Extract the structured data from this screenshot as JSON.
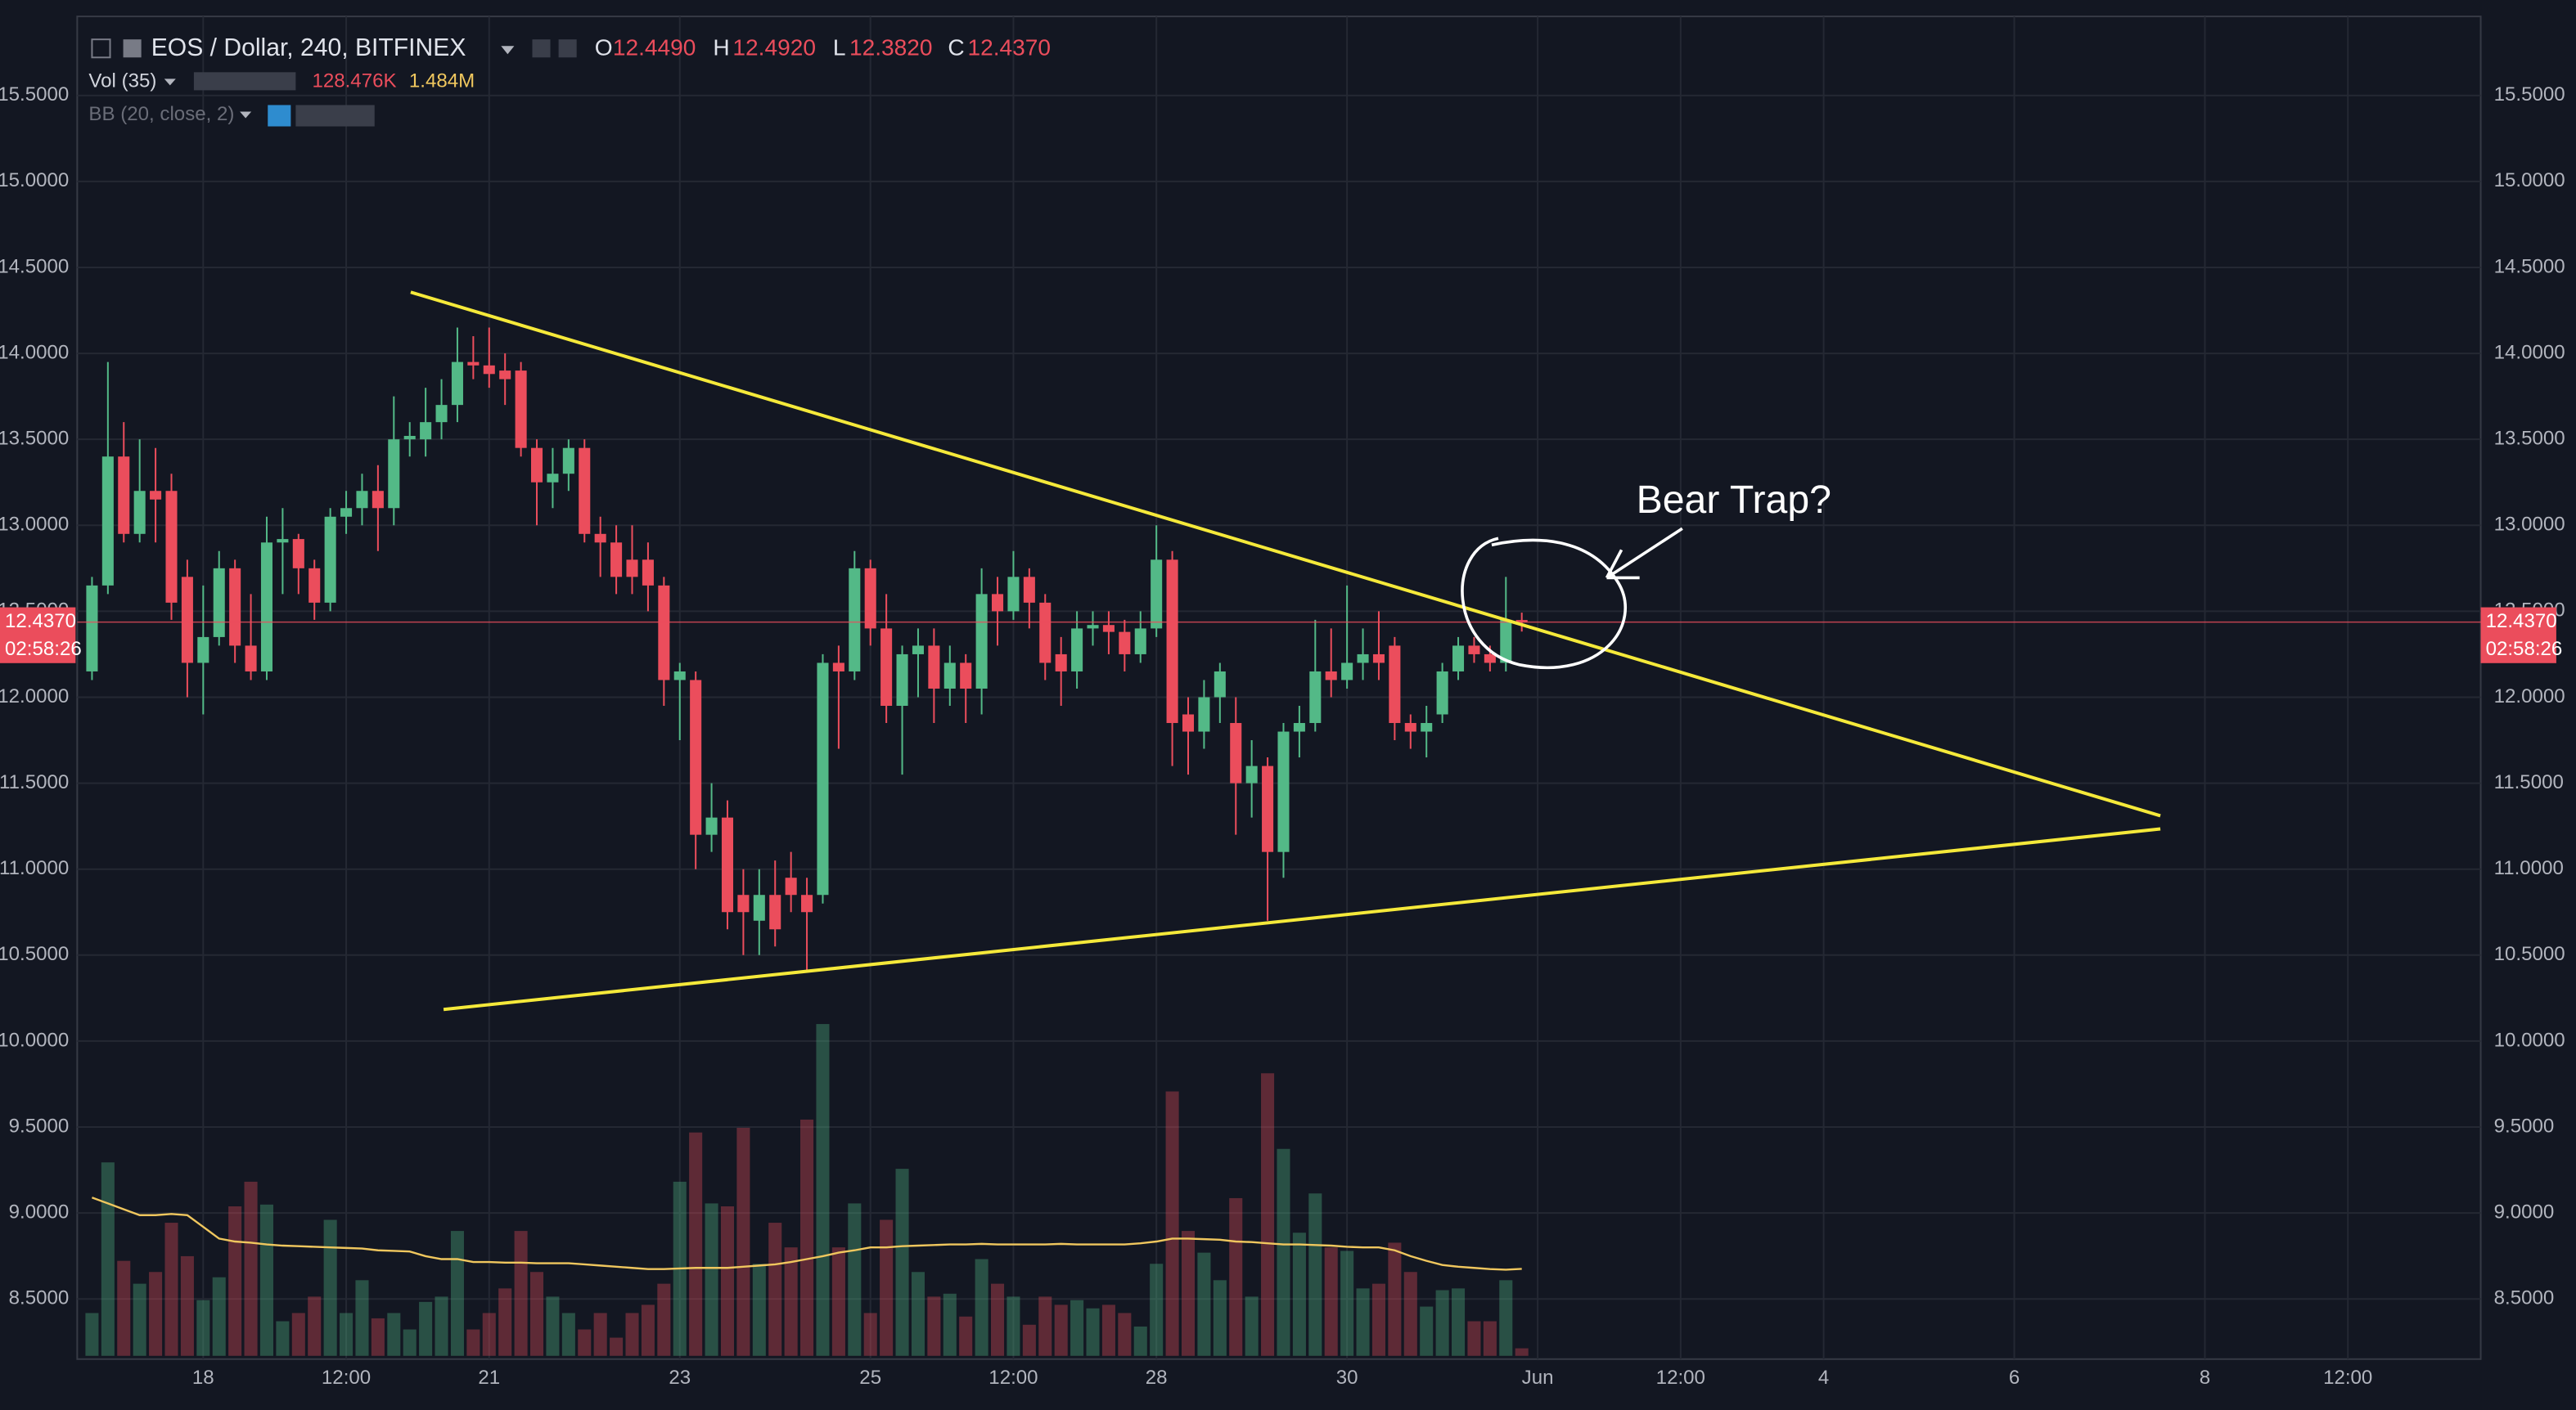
{
  "chart_data": {
    "type": "candlestick",
    "title": "EOS / Dollar, 240, BITFINEX",
    "ohlc_labels": [
      "O",
      "H",
      "L",
      "C"
    ],
    "ohlc_value_labels": [
      "12.4490",
      "12.4920",
      "12.3820",
      "12.4370"
    ],
    "volume_title": "Vol (35)",
    "volume_value_labels": [
      "128.476K",
      "1.484M"
    ],
    "bb_title": "BB (20, close, 2)",
    "last_price_label": "12.4370",
    "countdown": "02:58:26",
    "annotation": "Bear Trap?",
    "up_color": "#53b987",
    "down_color": "#eb4d5c",
    "ma_color": "#f0c75e",
    "ylim": [
      8.15,
      15.96
    ],
    "yticks": [
      {
        "value": 15.5,
        "label": "15.5000"
      },
      {
        "value": 15,
        "label": "15.0000"
      },
      {
        "value": 14.5,
        "label": "14.5000"
      },
      {
        "value": 14,
        "label": "14.0000"
      },
      {
        "value": 13.5,
        "label": "13.5000"
      },
      {
        "value": 13,
        "label": "13.0000"
      },
      {
        "value": 12.5,
        "label": "12.5000"
      },
      {
        "value": 12,
        "label": "12.0000"
      },
      {
        "value": 11.5,
        "label": "11.5000"
      },
      {
        "value": 11,
        "label": "11.0000"
      },
      {
        "value": 10.5,
        "label": "10.5000"
      },
      {
        "value": 10,
        "label": "10.0000"
      },
      {
        "value": 9.5,
        "label": "9.5000"
      },
      {
        "value": 9,
        "label": "9.0000"
      },
      {
        "value": 8.5,
        "label": "8.5000"
      }
    ],
    "xticks": [
      {
        "value": 7,
        "label": "18"
      },
      {
        "value": 16,
        "label": "12:00"
      },
      {
        "value": 25,
        "label": "21"
      },
      {
        "value": 37,
        "label": "23"
      },
      {
        "value": 49,
        "label": "25"
      },
      {
        "value": 58,
        "label": "12:00"
      },
      {
        "value": 67,
        "label": "28"
      },
      {
        "value": 79,
        "label": "30"
      },
      {
        "value": 91,
        "label": "Jun"
      },
      {
        "value": 100,
        "label": "12:00"
      },
      {
        "value": 109,
        "label": "4"
      },
      {
        "value": 121,
        "label": "6"
      },
      {
        "value": 133,
        "label": "8"
      },
      {
        "value": 142,
        "label": "12:00"
      }
    ],
    "grid": true,
    "ohlc": [
      [
        12.15,
        12.7,
        12.1,
        12.65
      ],
      [
        12.65,
        13.95,
        12.6,
        13.4
      ],
      [
        13.4,
        13.6,
        12.9,
        12.95
      ],
      [
        12.95,
        13.5,
        12.9,
        13.2
      ],
      [
        13.2,
        13.45,
        12.9,
        13.15
      ],
      [
        13.2,
        13.3,
        12.45,
        12.55
      ],
      [
        12.7,
        12.8,
        12.0,
        12.2
      ],
      [
        12.2,
        12.65,
        11.9,
        12.35
      ],
      [
        12.35,
        12.85,
        12.3,
        12.75
      ],
      [
        12.75,
        12.8,
        12.2,
        12.3
      ],
      [
        12.3,
        12.6,
        12.1,
        12.15
      ],
      [
        12.15,
        13.05,
        12.1,
        12.9
      ],
      [
        12.9,
        13.1,
        12.6,
        12.92
      ],
      [
        12.92,
        12.95,
        12.6,
        12.75
      ],
      [
        12.75,
        12.8,
        12.45,
        12.55
      ],
      [
        12.55,
        13.1,
        12.5,
        13.05
      ],
      [
        13.05,
        13.2,
        12.95,
        13.1
      ],
      [
        13.1,
        13.3,
        13.0,
        13.2
      ],
      [
        13.2,
        13.35,
        12.85,
        13.1
      ],
      [
        13.1,
        13.75,
        13.0,
        13.5
      ],
      [
        13.5,
        13.6,
        13.4,
        13.52
      ],
      [
        13.5,
        13.8,
        13.4,
        13.6
      ],
      [
        13.6,
        13.85,
        13.5,
        13.7
      ],
      [
        13.7,
        14.15,
        13.6,
        13.95
      ],
      [
        13.95,
        14.1,
        13.85,
        13.93
      ],
      [
        13.93,
        14.15,
        13.8,
        13.88
      ],
      [
        13.9,
        14.0,
        13.7,
        13.85
      ],
      [
        13.9,
        13.95,
        13.4,
        13.45
      ],
      [
        13.45,
        13.5,
        13.0,
        13.25
      ],
      [
        13.25,
        13.45,
        13.1,
        13.3
      ],
      [
        13.3,
        13.5,
        13.2,
        13.45
      ],
      [
        13.45,
        13.5,
        12.9,
        12.95
      ],
      [
        12.95,
        13.05,
        12.7,
        12.9
      ],
      [
        12.9,
        13.0,
        12.6,
        12.7
      ],
      [
        12.8,
        13.0,
        12.6,
        12.7
      ],
      [
        12.8,
        12.9,
        12.5,
        12.65
      ],
      [
        12.65,
        12.7,
        11.95,
        12.1
      ],
      [
        12.1,
        12.2,
        11.75,
        12.15
      ],
      [
        12.1,
        12.15,
        11.0,
        11.2
      ],
      [
        11.2,
        11.5,
        11.1,
        11.3
      ],
      [
        11.3,
        11.4,
        10.65,
        10.75
      ],
      [
        10.85,
        11.0,
        10.5,
        10.75
      ],
      [
        10.7,
        11.0,
        10.5,
        10.85
      ],
      [
        10.85,
        11.05,
        10.55,
        10.65
      ],
      [
        10.95,
        11.1,
        10.75,
        10.85
      ],
      [
        10.85,
        10.95,
        10.4,
        10.75
      ],
      [
        10.85,
        12.25,
        10.8,
        12.2
      ],
      [
        12.2,
        12.3,
        11.7,
        12.15
      ],
      [
        12.15,
        12.85,
        12.1,
        12.75
      ],
      [
        12.75,
        12.8,
        12.3,
        12.4
      ],
      [
        12.4,
        12.6,
        11.85,
        11.95
      ],
      [
        11.95,
        12.3,
        11.55,
        12.25
      ],
      [
        12.25,
        12.4,
        12.0,
        12.3
      ],
      [
        12.3,
        12.4,
        11.85,
        12.05
      ],
      [
        12.05,
        12.3,
        11.95,
        12.2
      ],
      [
        12.2,
        12.25,
        11.85,
        12.05
      ],
      [
        12.05,
        12.75,
        11.9,
        12.6
      ],
      [
        12.6,
        12.7,
        12.3,
        12.5
      ],
      [
        12.5,
        12.85,
        12.45,
        12.7
      ],
      [
        12.7,
        12.75,
        12.4,
        12.55
      ],
      [
        12.55,
        12.6,
        12.1,
        12.2
      ],
      [
        12.25,
        12.35,
        11.95,
        12.15
      ],
      [
        12.15,
        12.5,
        12.05,
        12.4
      ],
      [
        12.4,
        12.5,
        12.3,
        12.42
      ],
      [
        12.42,
        12.5,
        12.25,
        12.38
      ],
      [
        12.38,
        12.45,
        12.15,
        12.25
      ],
      [
        12.25,
        12.5,
        12.2,
        12.4
      ],
      [
        12.4,
        13.0,
        12.35,
        12.8
      ],
      [
        12.8,
        12.85,
        11.6,
        11.85
      ],
      [
        11.9,
        12.0,
        11.55,
        11.8
      ],
      [
        11.8,
        12.1,
        11.7,
        12.0
      ],
      [
        12.0,
        12.2,
        11.85,
        12.15
      ],
      [
        11.85,
        12.0,
        11.2,
        11.5
      ],
      [
        11.5,
        11.75,
        11.3,
        11.6
      ],
      [
        11.6,
        11.65,
        10.7,
        11.1
      ],
      [
        11.1,
        11.85,
        10.95,
        11.8
      ],
      [
        11.8,
        11.95,
        11.65,
        11.85
      ],
      [
        11.85,
        12.45,
        11.8,
        12.15
      ],
      [
        12.15,
        12.4,
        12.0,
        12.1
      ],
      [
        12.1,
        12.65,
        12.05,
        12.2
      ],
      [
        12.2,
        12.4,
        12.1,
        12.25
      ],
      [
        12.25,
        12.5,
        12.1,
        12.2
      ],
      [
        12.3,
        12.35,
        11.75,
        11.85
      ],
      [
        11.85,
        11.9,
        11.7,
        11.8
      ],
      [
        11.8,
        11.95,
        11.65,
        11.85
      ],
      [
        11.9,
        12.2,
        11.85,
        12.15
      ],
      [
        12.15,
        12.35,
        12.1,
        12.3
      ],
      [
        12.3,
        12.35,
        12.2,
        12.25
      ],
      [
        12.25,
        12.3,
        12.15,
        12.2
      ],
      [
        12.2,
        12.7,
        12.15,
        12.45
      ],
      [
        12.449,
        12.492,
        12.382,
        12.437
      ]
    ],
    "volume": [
      730,
      3300,
      1620,
      1230,
      1430,
      2270,
      1700,
      950,
      1340,
      2550,
      2970,
      2580,
      590,
      730,
      1010,
      2320,
      730,
      1290,
      640,
      730,
      450,
      920,
      1010,
      2130,
      450,
      730,
      1150,
      2130,
      1430,
      1010,
      730,
      450,
      730,
      310,
      730,
      870,
      1230,
      2970,
      3810,
      2600,
      2550,
      3890,
      1570,
      2270,
      1850,
      4030,
      5660,
      1850,
      2600,
      730,
      2320,
      3190,
      1430,
      1010,
      1060,
      670,
      1650,
      1230,
      1010,
      530,
      1010,
      870,
      950,
      810,
      870,
      730,
      500,
      1570,
      4510,
      2130,
      1760,
      1290,
      2690,
      1010,
      4820,
      3530,
      2100,
      2770,
      1850,
      1790,
      1150,
      1230,
      1930,
      1430,
      840,
      1120,
      1150,
      590,
      590,
      1290,
      128.476
    ],
    "volume_ma": [
      2700,
      2600,
      2500,
      2400,
      2400,
      2420,
      2400,
      2200,
      2000,
      1950,
      1930,
      1900,
      1880,
      1870,
      1860,
      1850,
      1840,
      1830,
      1800,
      1790,
      1780,
      1700,
      1650,
      1650,
      1600,
      1600,
      1590,
      1590,
      1580,
      1580,
      1580,
      1560,
      1540,
      1520,
      1500,
      1480,
      1480,
      1490,
      1500,
      1500,
      1500,
      1520,
      1540,
      1560,
      1600,
      1650,
      1700,
      1760,
      1800,
      1850,
      1850,
      1870,
      1880,
      1890,
      1900,
      1900,
      1910,
      1900,
      1900,
      1900,
      1900,
      1910,
      1900,
      1900,
      1900,
      1900,
      1920,
      1950,
      2000,
      2000,
      1990,
      1980,
      1950,
      1940,
      1920,
      1900,
      1900,
      1890,
      1880,
      1860,
      1850,
      1850,
      1800,
      1700,
      1620,
      1550,
      1520,
      1500,
      1480,
      1470,
      1484
    ]
  }
}
